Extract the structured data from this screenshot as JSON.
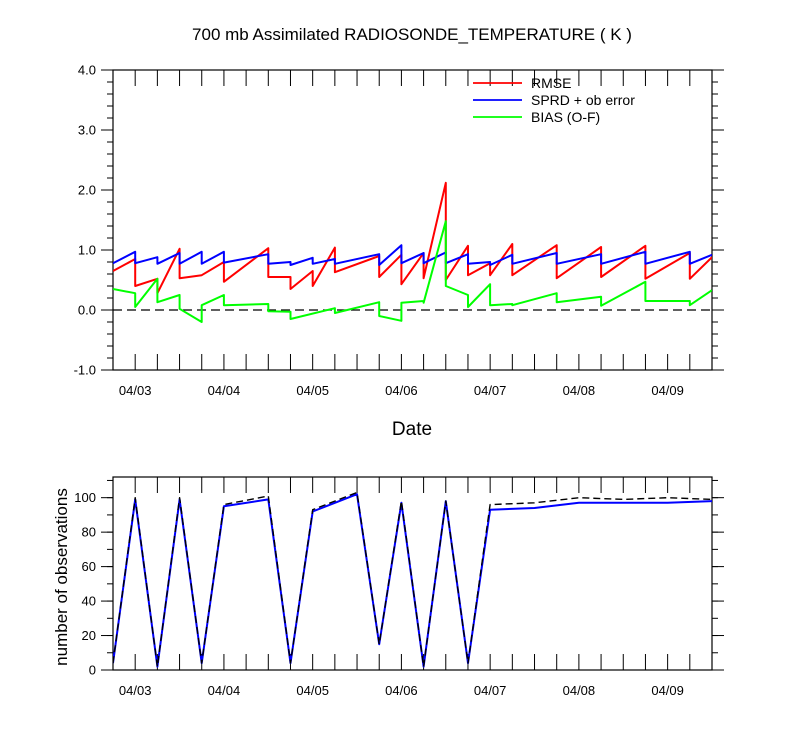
{
  "chart_data": [
    {
      "type": "line",
      "title": "700 mb Assimilated RADIOSONDE_TEMPERATURE ( K )",
      "xlabel": "Date",
      "ylabel": "",
      "xlim": [
        0,
        6.75
      ],
      "ylim": [
        -1.0,
        4.0
      ],
      "yticks": [
        -1.0,
        0.0,
        1.0,
        2.0,
        3.0,
        4.0
      ],
      "ytick_labels": [
        "-1.0",
        "0.0",
        "1.0",
        "2.0",
        "3.0",
        "4.0"
      ],
      "xtick_positions": [
        0.25,
        1.25,
        2.25,
        3.25,
        4.25,
        5.25,
        6.25
      ],
      "xtick_labels": [
        "04/03",
        "04/04",
        "04/05",
        "04/06",
        "04/07",
        "04/08",
        "04/09"
      ],
      "zero_line": "dashed",
      "legend_position": "top-right",
      "series": [
        {
          "name": "RMSE",
          "color": "#ff0000",
          "points": [
            [
              0.0,
              0.65
            ],
            [
              0.25,
              0.85
            ],
            [
              0.25,
              0.4
            ],
            [
              0.5,
              0.52
            ],
            [
              0.5,
              0.28
            ],
            [
              0.75,
              1.02
            ],
            [
              0.75,
              0.53
            ],
            [
              1.0,
              0.58
            ],
            [
              1.0,
              0.58
            ],
            [
              1.25,
              0.8
            ],
            [
              1.25,
              0.47
            ],
            [
              1.75,
              1.03
            ],
            [
              1.75,
              0.55
            ],
            [
              2.0,
              0.55
            ],
            [
              2.0,
              0.35
            ],
            [
              2.25,
              0.65
            ],
            [
              2.25,
              0.4
            ],
            [
              2.5,
              1.04
            ],
            [
              2.5,
              0.63
            ],
            [
              3.0,
              0.9
            ],
            [
              3.0,
              0.55
            ],
            [
              3.25,
              0.92
            ],
            [
              3.25,
              0.43
            ],
            [
              3.5,
              0.95
            ],
            [
              3.5,
              0.53
            ],
            [
              3.75,
              2.12
            ],
            [
              3.75,
              0.5
            ],
            [
              4.0,
              1.07
            ],
            [
              4.0,
              0.58
            ],
            [
              4.25,
              0.78
            ],
            [
              4.25,
              0.58
            ],
            [
              4.5,
              1.1
            ],
            [
              4.5,
              0.58
            ],
            [
              5.0,
              1.08
            ],
            [
              5.0,
              0.53
            ],
            [
              5.5,
              1.05
            ],
            [
              5.5,
              0.55
            ],
            [
              6.0,
              1.07
            ],
            [
              6.0,
              0.52
            ],
            [
              6.5,
              0.95
            ],
            [
              6.5,
              0.52
            ],
            [
              6.75,
              0.88
            ]
          ]
        },
        {
          "name": "SPRD + ob error",
          "color": "#0000ff",
          "points": [
            [
              0.0,
              0.78
            ],
            [
              0.25,
              0.97
            ],
            [
              0.25,
              0.78
            ],
            [
              0.5,
              0.88
            ],
            [
              0.5,
              0.77
            ],
            [
              0.75,
              0.95
            ],
            [
              0.75,
              0.77
            ],
            [
              1.0,
              0.97
            ],
            [
              1.0,
              0.77
            ],
            [
              1.25,
              0.97
            ],
            [
              1.25,
              0.79
            ],
            [
              1.75,
              0.93
            ],
            [
              1.75,
              0.77
            ],
            [
              2.0,
              0.8
            ],
            [
              2.0,
              0.75
            ],
            [
              2.25,
              0.87
            ],
            [
              2.25,
              0.77
            ],
            [
              2.5,
              0.85
            ],
            [
              2.5,
              0.77
            ],
            [
              3.0,
              0.93
            ],
            [
              3.0,
              0.75
            ],
            [
              3.25,
              1.08
            ],
            [
              3.25,
              0.78
            ],
            [
              3.5,
              0.95
            ],
            [
              3.5,
              0.78
            ],
            [
              3.75,
              0.96
            ],
            [
              3.75,
              0.78
            ],
            [
              4.0,
              0.93
            ],
            [
              4.0,
              0.77
            ],
            [
              4.25,
              0.8
            ],
            [
              4.25,
              0.75
            ],
            [
              4.5,
              0.92
            ],
            [
              4.5,
              0.77
            ],
            [
              5.0,
              0.95
            ],
            [
              5.0,
              0.77
            ],
            [
              5.5,
              0.93
            ],
            [
              5.5,
              0.77
            ],
            [
              6.0,
              0.97
            ],
            [
              6.0,
              0.77
            ],
            [
              6.5,
              0.97
            ],
            [
              6.5,
              0.77
            ],
            [
              6.75,
              0.92
            ]
          ]
        },
        {
          "name": "BIAS (O-F)",
          "color": "#00ff00",
          "points": [
            [
              0.0,
              0.35
            ],
            [
              0.25,
              0.28
            ],
            [
              0.25,
              0.05
            ],
            [
              0.5,
              0.52
            ],
            [
              0.5,
              0.13
            ],
            [
              0.75,
              0.25
            ],
            [
              0.75,
              0.02
            ],
            [
              1.0,
              -0.2
            ],
            [
              1.0,
              0.08
            ],
            [
              1.25,
              0.25
            ],
            [
              1.25,
              0.08
            ],
            [
              1.75,
              0.1
            ],
            [
              1.75,
              -0.02
            ],
            [
              2.0,
              -0.03
            ],
            [
              2.0,
              -0.15
            ],
            [
              2.5,
              0.03
            ],
            [
              2.5,
              -0.05
            ],
            [
              3.0,
              0.13
            ],
            [
              3.0,
              -0.1
            ],
            [
              3.25,
              -0.18
            ],
            [
              3.25,
              0.12
            ],
            [
              3.5,
              0.15
            ],
            [
              3.5,
              0.12
            ],
            [
              3.75,
              1.48
            ],
            [
              3.75,
              0.4
            ],
            [
              4.0,
              0.25
            ],
            [
              4.0,
              0.05
            ],
            [
              4.25,
              0.43
            ],
            [
              4.25,
              0.08
            ],
            [
              4.5,
              0.1
            ],
            [
              4.5,
              0.08
            ],
            [
              5.0,
              0.28
            ],
            [
              5.0,
              0.13
            ],
            [
              5.5,
              0.22
            ],
            [
              5.5,
              0.07
            ],
            [
              6.0,
              0.47
            ],
            [
              6.0,
              0.15
            ],
            [
              6.5,
              0.15
            ],
            [
              6.5,
              0.08
            ],
            [
              6.75,
              0.33
            ]
          ]
        }
      ]
    },
    {
      "type": "line",
      "title": "",
      "xlabel": "",
      "ylabel": "number of observations",
      "xlim": [
        0,
        6.75
      ],
      "ylim": [
        0,
        112
      ],
      "yticks": [
        0,
        20,
        40,
        60,
        80,
        100
      ],
      "ytick_labels": [
        "0",
        "20",
        "40",
        "60",
        "80",
        "100"
      ],
      "xtick_positions": [
        0.25,
        1.25,
        2.25,
        3.25,
        4.25,
        5.25,
        6.25
      ],
      "xtick_labels": [
        "04/03",
        "04/04",
        "04/05",
        "04/06",
        "04/07",
        "04/08",
        "04/09"
      ],
      "series": [
        {
          "color": "#0000ff",
          "style": "solid",
          "points": [
            [
              0.0,
              4
            ],
            [
              0.25,
              99
            ],
            [
              0.5,
              2
            ],
            [
              0.75,
              99
            ],
            [
              1.0,
              4
            ],
            [
              1.25,
              95
            ],
            [
              1.75,
              99
            ],
            [
              2.0,
              4
            ],
            [
              2.25,
              92
            ],
            [
              2.75,
              102
            ],
            [
              3.0,
              15
            ],
            [
              3.25,
              97
            ],
            [
              3.5,
              2
            ],
            [
              3.75,
              98
            ],
            [
              4.0,
              4
            ],
            [
              4.25,
              93
            ],
            [
              4.75,
              94
            ],
            [
              5.25,
              97
            ],
            [
              6.25,
              97
            ],
            [
              6.75,
              98
            ]
          ]
        },
        {
          "color": "#000000",
          "style": "dashed",
          "points": [
            [
              0.0,
              4
            ],
            [
              0.25,
              100
            ],
            [
              0.5,
              2
            ],
            [
              0.75,
              100
            ],
            [
              1.0,
              4
            ],
            [
              1.25,
              96
            ],
            [
              1.75,
              101
            ],
            [
              2.0,
              4
            ],
            [
              2.25,
              93
            ],
            [
              2.75,
              103
            ],
            [
              3.0,
              15
            ],
            [
              3.25,
              98
            ],
            [
              3.5,
              2
            ],
            [
              3.75,
              98
            ],
            [
              4.0,
              4
            ],
            [
              4.25,
              96
            ],
            [
              4.75,
              97
            ],
            [
              5.25,
              100
            ],
            [
              5.75,
              99
            ],
            [
              6.25,
              100
            ],
            [
              6.75,
              99
            ]
          ]
        }
      ]
    }
  ]
}
